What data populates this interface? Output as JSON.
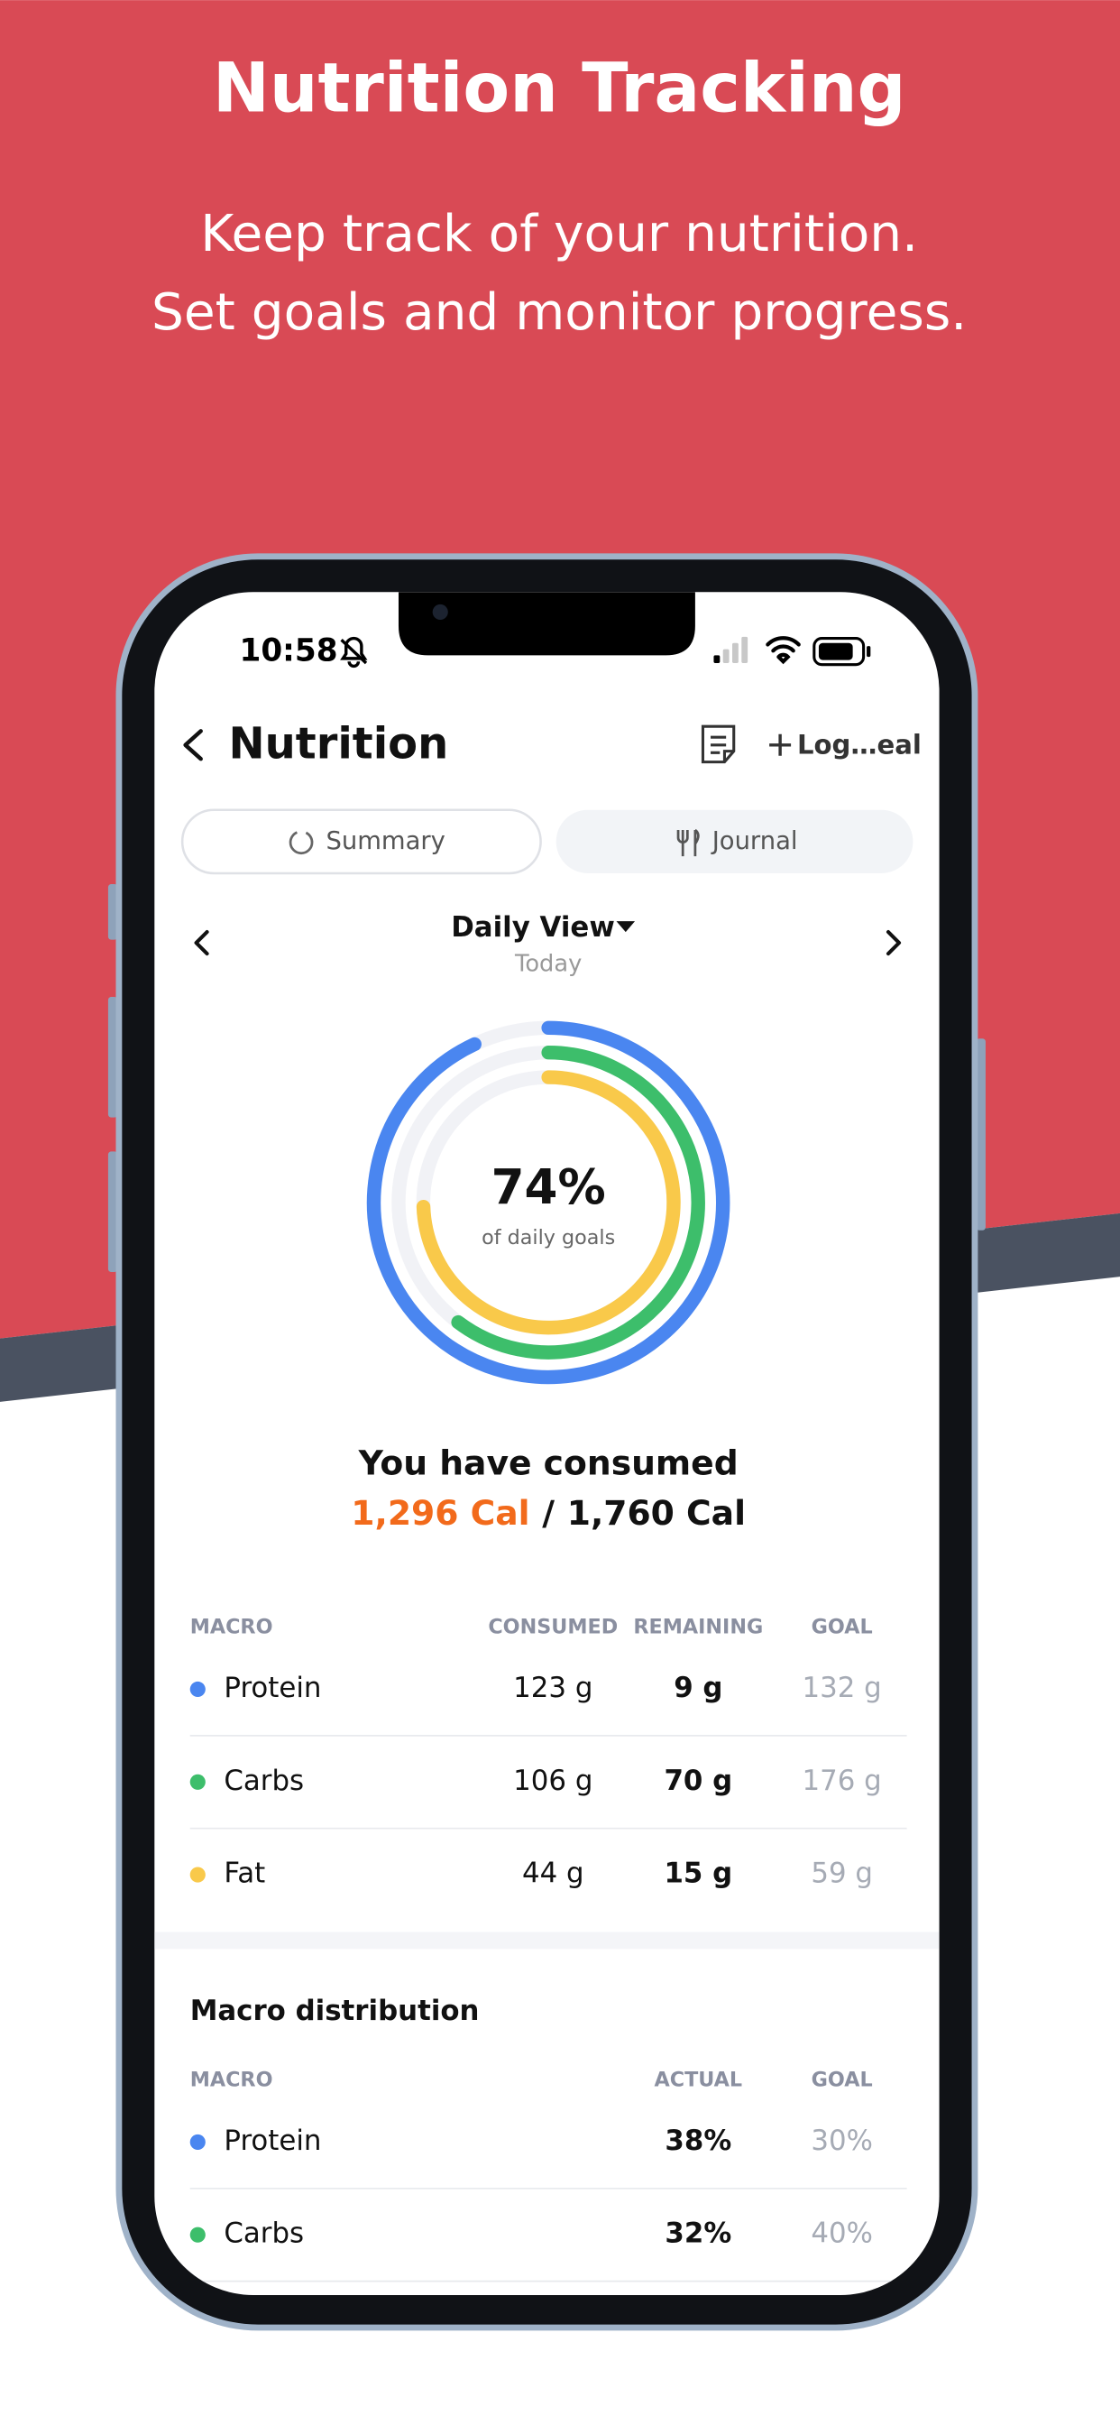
{
  "header": {
    "title": "Nutrition Tracking",
    "subtitle": [
      "Keep track of your nutrition.",
      "Set goals and monitor progress."
    ]
  },
  "status_bar": {
    "time": "10:58"
  },
  "nav": {
    "title": "Nutrition",
    "action": "Log…eal"
  },
  "tabs": [
    "Summary",
    "Journal"
  ],
  "view": {
    "title": "Daily View",
    "subtitle": "Today"
  },
  "ring": {
    "value": "74%",
    "label": "of daily goals"
  },
  "consumed": {
    "heading": "You have consumed",
    "amount": "1,296 Cal",
    "separator": "/",
    "goal": "1,760 Cal"
  },
  "macros": {
    "headers": [
      "MACRO",
      "CONSUMED",
      "REMAINING",
      "GOAL"
    ],
    "rows": [
      [
        "Protein",
        "123 g",
        "9 g",
        "132 g"
      ],
      [
        "Carbs",
        "106 g",
        "70 g",
        "176 g"
      ],
      [
        "Fat",
        "44 g",
        "15 g",
        "59 g"
      ]
    ]
  },
  "distribution": {
    "title": "Macro distribution",
    "headers": [
      "MACRO",
      "ACTUAL",
      "GOAL"
    ],
    "rows": [
      [
        "Protein",
        "38%",
        "30%"
      ],
      [
        "Carbs",
        "32%",
        "40%"
      ]
    ]
  }
}
